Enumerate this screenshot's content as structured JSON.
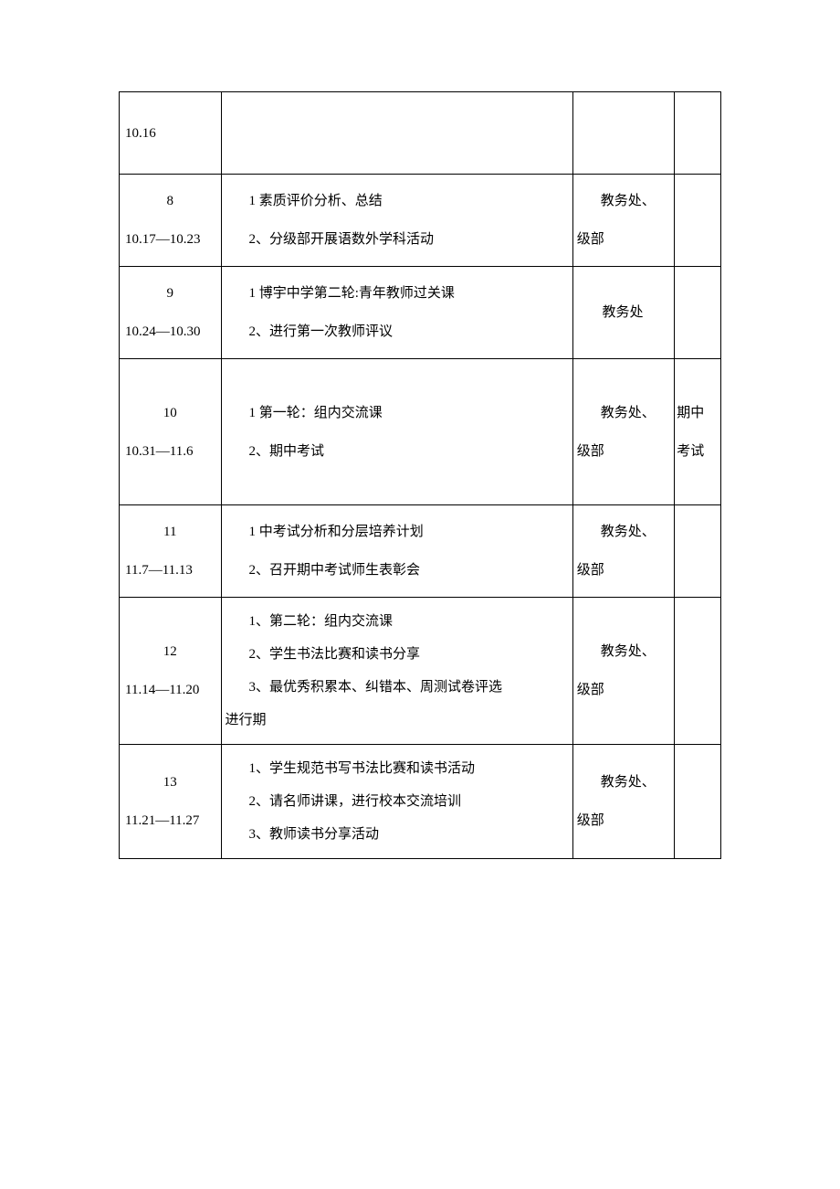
{
  "rows": [
    {
      "week_num": "",
      "week_date": "10.16",
      "content_lines": [],
      "dept_lines": [],
      "note": "",
      "row_class": "row-short"
    },
    {
      "week_num": "8",
      "week_date": "10.17—10.23",
      "content_lines": [
        "1 素质评价分析、总结",
        "2、分级部开展语数外学科活动"
      ],
      "dept_lines": [
        "教务处、",
        "级部"
      ],
      "note": ""
    },
    {
      "week_num": "9",
      "week_date": "10.24—10.30",
      "content_lines": [
        "1 博宇中学第二轮:青年教师过关课",
        "2、进行第一次教师评议"
      ],
      "dept_lines": [
        "教务处"
      ],
      "dept_single": true,
      "note": ""
    },
    {
      "week_num": "10",
      "week_date": "10.31—11.6",
      "content_lines": [
        "1 第一轮：组内交流课",
        "2、期中考试"
      ],
      "dept_lines": [
        "教务处、",
        "级部"
      ],
      "note": "期中考试"
    },
    {
      "week_num": "11",
      "week_date": "11.7—11.13",
      "content_lines": [
        "1 中考试分析和分层培养计划",
        "2、召开期中考试师生表彰会"
      ],
      "dept_lines": [
        "教务处、",
        "级部"
      ],
      "note": ""
    },
    {
      "week_num": "12",
      "week_date": "11.14—11.20",
      "content_lines": [
        "1、第二轮：组内交流课",
        "2、学生书法比赛和读书分享",
        "3、最优秀积累本、纠错本、周测试卷评选"
      ],
      "content_extra": "进行期",
      "dept_lines": [
        "教务处、",
        "级部"
      ],
      "note": ""
    },
    {
      "week_num": "13",
      "week_date": "11.21—11.27",
      "content_lines": [
        "1、学生规范书写书法比赛和读书活动",
        "2、请名师讲课，进行校本交流培训",
        "3、教师读书分享活动"
      ],
      "dept_lines": [
        "教务处、",
        "级部"
      ],
      "note": ""
    }
  ],
  "colors": {
    "text": "#000000",
    "border": "#000000",
    "background": "#ffffff"
  }
}
